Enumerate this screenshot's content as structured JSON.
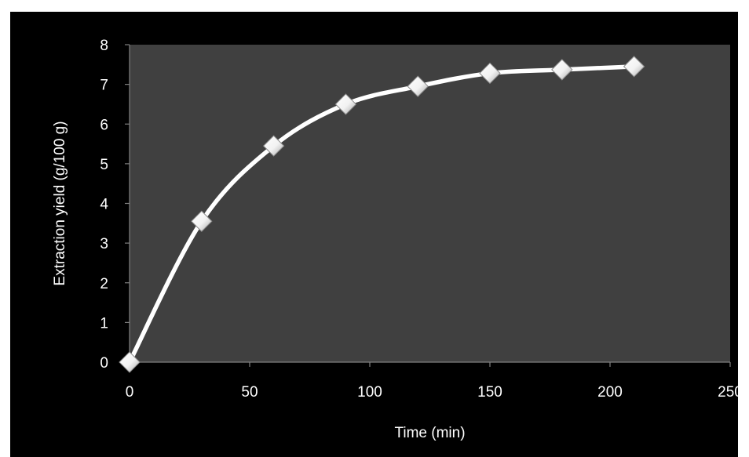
{
  "colors": {
    "figure_background": "#000000",
    "plot_background": "#404040",
    "line": "#ffffff",
    "text": "#ffffff"
  },
  "chart_data": {
    "type": "line",
    "title": "",
    "xlabel": "Time (min)",
    "ylabel": "Extraction yield (g/100 g)",
    "xlim": [
      0,
      250
    ],
    "ylim": [
      0,
      8
    ],
    "xticks": [
      0,
      50,
      100,
      150,
      200,
      250
    ],
    "yticks": [
      0,
      1,
      2,
      3,
      4,
      5,
      6,
      7,
      8
    ],
    "grid": false,
    "legend": "none",
    "marker": "diamond",
    "smooth": true,
    "x": [
      0,
      30,
      60,
      90,
      120,
      150,
      180,
      210
    ],
    "series": [
      {
        "values": [
          0,
          3.55,
          5.45,
          6.5,
          6.95,
          7.28,
          7.37,
          7.45
        ]
      }
    ]
  }
}
